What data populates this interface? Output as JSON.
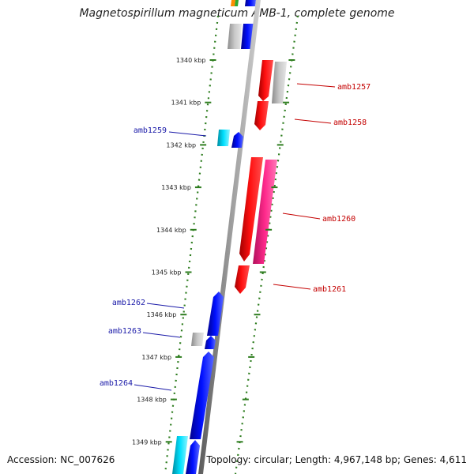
{
  "title": "Magnetospirillum magneticum AMB-1, complete genome",
  "footer": {
    "accession": "Accession: NC_007626",
    "summary": "Topology: circular; Length: 4,967,148 bp; Genes: 4,611"
  },
  "colors": {
    "backbone": "#8a8a8a",
    "tick": "#2e7d1f",
    "reverse_label": "#1a1aa8",
    "forward_label": "#c40000"
  },
  "ticks": [
    {
      "label": "1340 kbp"
    },
    {
      "label": "1341 kbp"
    },
    {
      "label": "1342 kbp"
    },
    {
      "label": "1343 kbp"
    },
    {
      "label": "1344 kbp"
    },
    {
      "label": "1345 kbp"
    },
    {
      "label": "1346 kbp"
    },
    {
      "label": "1347 kbp"
    },
    {
      "label": "1348 kbp"
    },
    {
      "label": "1349 kbp"
    }
  ],
  "forward_labels": [
    {
      "name": "amb1257"
    },
    {
      "name": "amb1258"
    },
    {
      "name": "amb1260"
    },
    {
      "name": "amb1261"
    }
  ],
  "reverse_labels": [
    {
      "name": "amb1259"
    },
    {
      "name": "amb1262"
    },
    {
      "name": "amb1263"
    },
    {
      "name": "amb1264"
    }
  ]
}
